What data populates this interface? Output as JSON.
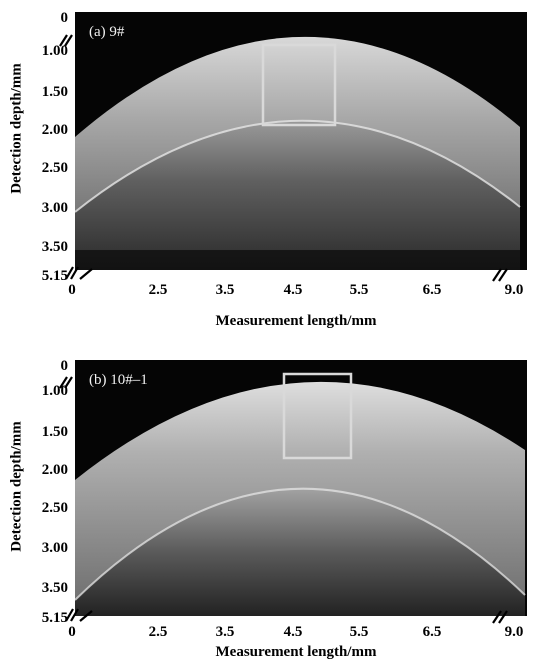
{
  "figure": {
    "panels": [
      {
        "label": "(a) 9#",
        "y_label": "Detection depth/mm",
        "x_label": "Measurement length/mm",
        "y_ticks": [
          "0",
          "1.00",
          "1.50",
          "2.00",
          "2.50",
          "3.00",
          "3.50",
          "5.15"
        ],
        "x_ticks": [
          "0",
          "2.5",
          "3.5",
          "4.5",
          "5.5",
          "6.5",
          "9.0"
        ]
      },
      {
        "label": "(b) 10#–1",
        "y_label": "Detection depth/mm",
        "x_label": "Measurement length/mm",
        "y_ticks": [
          "0",
          "1.00",
          "1.50",
          "2.00",
          "2.50",
          "3.00",
          "3.50",
          "5.15"
        ],
        "x_ticks": [
          "0",
          "2.5",
          "3.5",
          "4.5",
          "5.5",
          "6.5",
          "9.0"
        ]
      }
    ]
  },
  "colors": {
    "background": "#050505",
    "tissue_bright": "#cfcfcf",
    "tissue_dark": "#3a3a3a",
    "roi_box": "#d9d9d9"
  }
}
